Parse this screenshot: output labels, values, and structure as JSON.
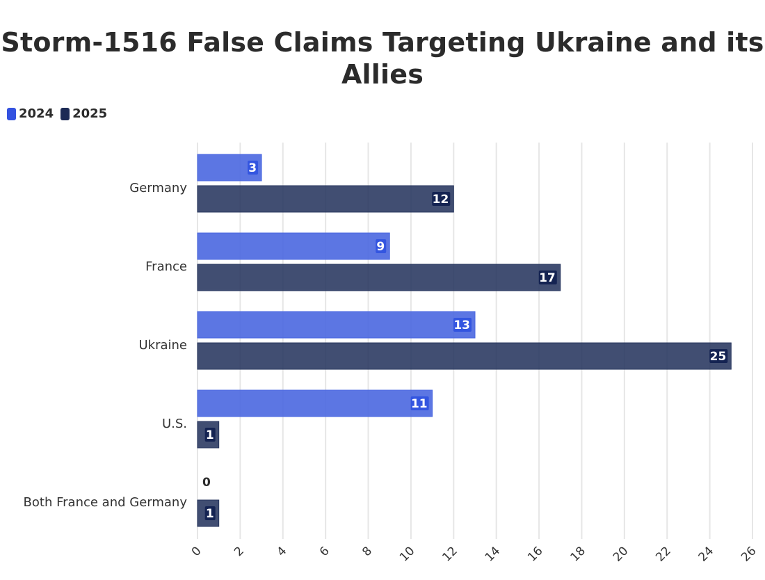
{
  "chart_data": {
    "type": "bar",
    "orientation": "horizontal",
    "title": "Storm-1516 False Claims Targeting Ukraine and its Allies",
    "title_lines": [
      "Storm-1516 False Claims Targeting Ukraine and its",
      "Allies"
    ],
    "categories": [
      "Germany",
      "France",
      "Ukraine",
      "U.S.",
      "Both France and Germany"
    ],
    "series": [
      {
        "name": "2024",
        "color": "#4a67e0",
        "values": [
          3,
          9,
          13,
          11,
          0
        ]
      },
      {
        "name": "2025",
        "color": "#27365e",
        "values": [
          12,
          17,
          25,
          1,
          1
        ]
      }
    ],
    "xlim": [
      0,
      26
    ],
    "xticks": [
      0,
      2,
      4,
      6,
      8,
      10,
      12,
      14,
      16,
      18,
      20,
      22,
      24,
      26
    ],
    "xlabel": "",
    "ylabel": "",
    "grid": "vertical",
    "legend": "top-left",
    "data_labels": true
  }
}
